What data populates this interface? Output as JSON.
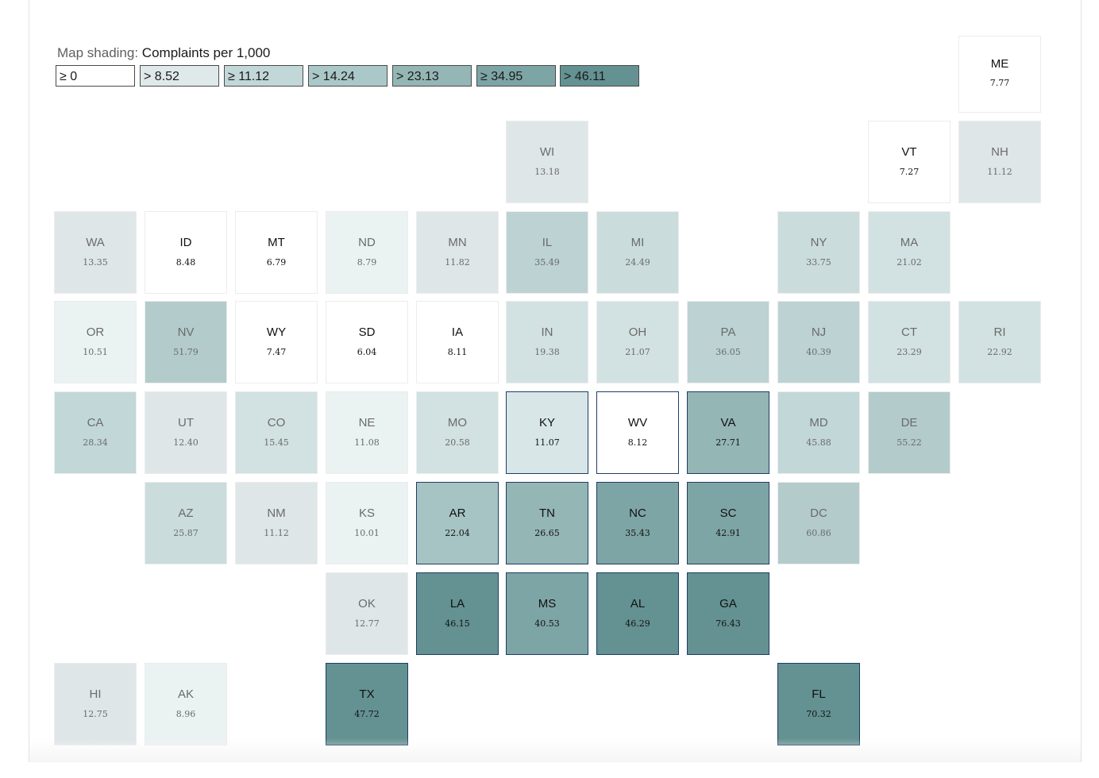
{
  "legend": {
    "prefix": "Map shading: ",
    "metric": "Complaints per 1,000",
    "bins": [
      {
        "label": "≥ 0",
        "color": "#ffffff"
      },
      {
        "label": "> 8.52",
        "color": "#dfe9ea"
      },
      {
        "label": "≥ 11.12",
        "color": "#c2d7d8"
      },
      {
        "label": "> 14.24",
        "color": "#abc8c8"
      },
      {
        "label": "> 23.13",
        "color": "#94b6b5"
      },
      {
        "label": "≥ 34.95",
        "color": "#7ea5a5"
      },
      {
        "label": "> 46.11",
        "color": "#649191"
      }
    ]
  },
  "states": [
    {
      "abbr": "ME",
      "value": "7.77",
      "fill": "#ffffff",
      "style": "dark"
    },
    {
      "abbr": "WI",
      "value": "13.18",
      "fill": "#dfe6e8",
      "style": "muted"
    },
    {
      "abbr": "VT",
      "value": "7.27",
      "fill": "#ffffff",
      "style": "dark"
    },
    {
      "abbr": "NH",
      "value": "11.12",
      "fill": "#dfe6e8",
      "style": "muted"
    },
    {
      "abbr": "WA",
      "value": "13.35",
      "fill": "#dfe6e8",
      "style": "muted"
    },
    {
      "abbr": "ID",
      "value": "8.48",
      "fill": "#ffffff",
      "style": "dark"
    },
    {
      "abbr": "MT",
      "value": "6.79",
      "fill": "#ffffff",
      "style": "dark"
    },
    {
      "abbr": "ND",
      "value": "8.79",
      "fill": "#ebf2f2",
      "style": "muted"
    },
    {
      "abbr": "MN",
      "value": "11.82",
      "fill": "#dfe6e8",
      "style": "muted"
    },
    {
      "abbr": "IL",
      "value": "35.49",
      "fill": "#bcd2d3",
      "style": "muted"
    },
    {
      "abbr": "MI",
      "value": "24.49",
      "fill": "#cadcdc",
      "style": "muted"
    },
    {
      "abbr": "NY",
      "value": "33.75",
      "fill": "#cadcdc",
      "style": "muted"
    },
    {
      "abbr": "MA",
      "value": "21.02",
      "fill": "#d2e1e1",
      "style": "muted"
    },
    {
      "abbr": "OR",
      "value": "10.51",
      "fill": "#ebf2f2",
      "style": "muted"
    },
    {
      "abbr": "NV",
      "value": "51.79",
      "fill": "#b3cbcb",
      "style": "muted"
    },
    {
      "abbr": "WY",
      "value": "7.47",
      "fill": "#ffffff",
      "style": "dark"
    },
    {
      "abbr": "SD",
      "value": "6.04",
      "fill": "#ffffff",
      "style": "dark"
    },
    {
      "abbr": "IA",
      "value": "8.11",
      "fill": "#ffffff",
      "style": "dark"
    },
    {
      "abbr": "IN",
      "value": "19.38",
      "fill": "#d2e1e1",
      "style": "muted"
    },
    {
      "abbr": "OH",
      "value": "21.07",
      "fill": "#d2e1e1",
      "style": "muted"
    },
    {
      "abbr": "PA",
      "value": "36.05",
      "fill": "#bcd2d3",
      "style": "muted"
    },
    {
      "abbr": "NJ",
      "value": "40.39",
      "fill": "#bcd2d3",
      "style": "muted"
    },
    {
      "abbr": "CT",
      "value": "23.29",
      "fill": "#d2e1e1",
      "style": "muted"
    },
    {
      "abbr": "RI",
      "value": "22.92",
      "fill": "#d2e1e1",
      "style": "muted"
    },
    {
      "abbr": "CA",
      "value": "28.34",
      "fill": "#c2d7d8",
      "style": "muted"
    },
    {
      "abbr": "UT",
      "value": "12.40",
      "fill": "#dfe6e8",
      "style": "muted"
    },
    {
      "abbr": "CO",
      "value": "15.45",
      "fill": "#d2e1e1",
      "style": "muted"
    },
    {
      "abbr": "NE",
      "value": "11.08",
      "fill": "#ebf2f2",
      "style": "muted"
    },
    {
      "abbr": "MO",
      "value": "20.58",
      "fill": "#d2e1e1",
      "style": "muted"
    },
    {
      "abbr": "KY",
      "value": "11.07",
      "fill": "#d8e6e7",
      "style": "dark",
      "selected": true
    },
    {
      "abbr": "WV",
      "value": "8.12",
      "fill": "#ffffff",
      "style": "dark",
      "selected": true
    },
    {
      "abbr": "VA",
      "value": "27.71",
      "fill": "#94b6b5",
      "style": "dark",
      "selected": true
    },
    {
      "abbr": "MD",
      "value": "45.88",
      "fill": "#c2d7d8",
      "style": "muted"
    },
    {
      "abbr": "DE",
      "value": "55.22",
      "fill": "#b3cbcb",
      "style": "muted"
    },
    {
      "abbr": "AZ",
      "value": "25.87",
      "fill": "#cadcdc",
      "style": "muted"
    },
    {
      "abbr": "NM",
      "value": "11.12",
      "fill": "#dfe6e8",
      "style": "muted"
    },
    {
      "abbr": "KS",
      "value": "10.01",
      "fill": "#ebf2f2",
      "style": "muted"
    },
    {
      "abbr": "AR",
      "value": "22.04",
      "fill": "#a7c4c4",
      "style": "dark",
      "selected": true
    },
    {
      "abbr": "TN",
      "value": "26.65",
      "fill": "#94b6b5",
      "style": "dark",
      "selected": true
    },
    {
      "abbr": "NC",
      "value": "35.43",
      "fill": "#7ea5a5",
      "style": "dark",
      "selected": true
    },
    {
      "abbr": "SC",
      "value": "42.91",
      "fill": "#7ea5a5",
      "style": "dark",
      "selected": true
    },
    {
      "abbr": "DC",
      "value": "60.86",
      "fill": "#b3cbcb",
      "style": "muted"
    },
    {
      "abbr": "OK",
      "value": "12.77",
      "fill": "#dfe6e8",
      "style": "muted"
    },
    {
      "abbr": "LA",
      "value": "46.15",
      "fill": "#649191",
      "style": "dark",
      "selected": true
    },
    {
      "abbr": "MS",
      "value": "40.53",
      "fill": "#7ea5a5",
      "style": "dark",
      "selected": true
    },
    {
      "abbr": "AL",
      "value": "46.29",
      "fill": "#649191",
      "style": "dark",
      "selected": true
    },
    {
      "abbr": "GA",
      "value": "76.43",
      "fill": "#649191",
      "style": "dark",
      "selected": true
    },
    {
      "abbr": "HI",
      "value": "12.75",
      "fill": "#dfe6e8",
      "style": "muted"
    },
    {
      "abbr": "AK",
      "value": "8.96",
      "fill": "#ebf2f2",
      "style": "muted"
    },
    {
      "abbr": "TX",
      "value": "47.72",
      "fill": "#649191",
      "style": "dark",
      "selected": true
    },
    {
      "abbr": "FL",
      "value": "70.32",
      "fill": "#649191",
      "style": "dark",
      "selected": true
    }
  ]
}
